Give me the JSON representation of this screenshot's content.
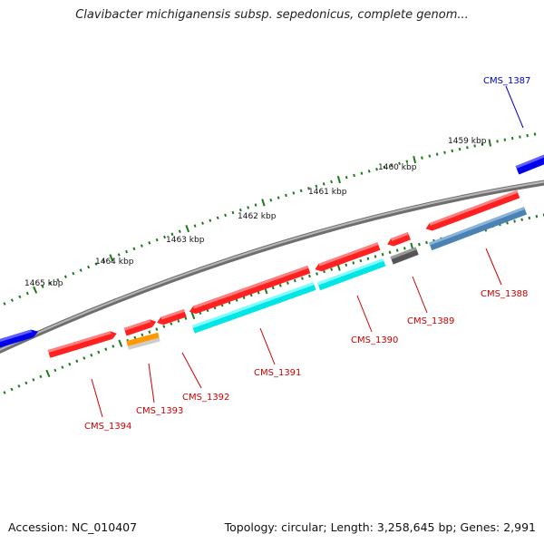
{
  "header": {
    "title": "Clavibacter michiganensis subsp. sepedonicus, complete genom..."
  },
  "footer": {
    "accession": "Accession: NC_010407",
    "topology": "Topology: circular; Length: 3,258,645 bp; Genes: 2,991"
  },
  "colors": {
    "forward_gene": "#ff0000",
    "reverse_gene": "#00ffff",
    "backbone": "#808080",
    "ticks": "#1a7a1a",
    "other_gene": "#0000ff",
    "label_red": "#cc0000",
    "label_blue": "#0000cc",
    "orange_gene": "#ff9900",
    "gray_gene": "#555555",
    "steelblue_gene": "#4a82b4"
  },
  "kbp_labels": [
    "1465 kbp",
    "1464 kbp",
    "1463 kbp",
    "1462 kbp",
    "1461 kbp",
    "1460 kbp",
    "1459 kbp"
  ],
  "gene_labels": [
    "CMS_1387",
    "CMS_1388",
    "CMS_1389",
    "CMS_1390",
    "CMS_1391",
    "CMS_1392",
    "CMS_1393",
    "CMS_1394"
  ]
}
